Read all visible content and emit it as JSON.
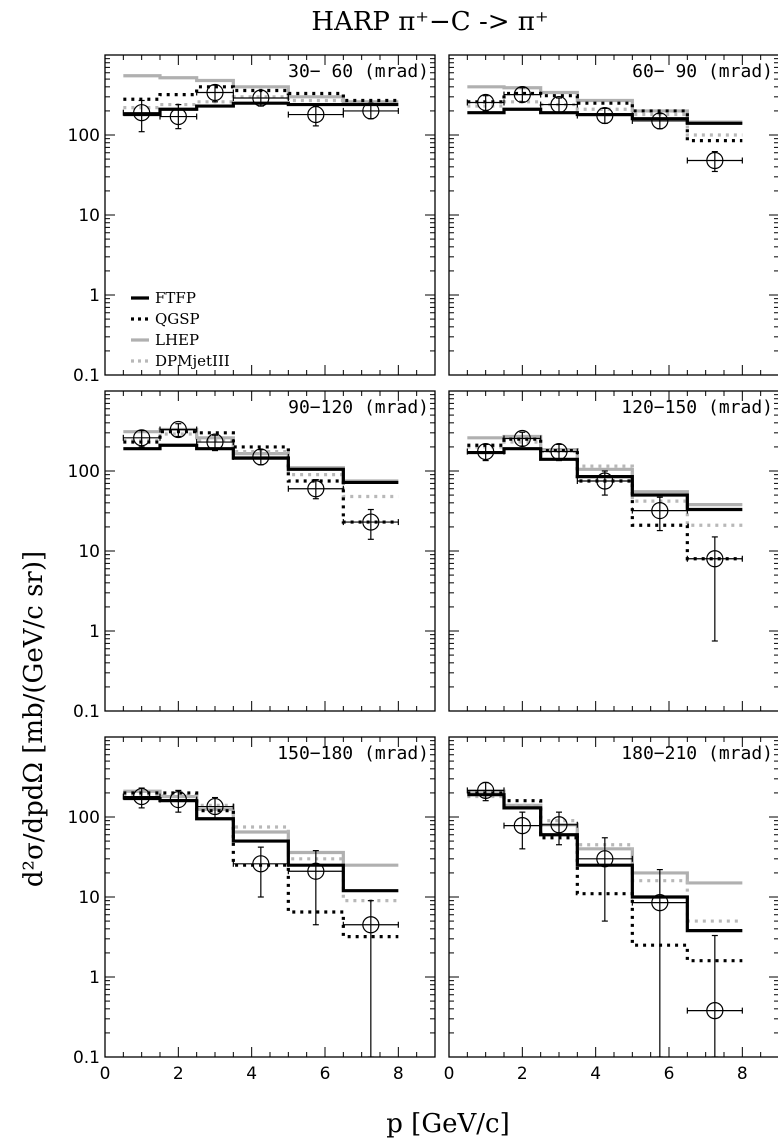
{
  "figure": {
    "title": "HARP π⁺−C -> π⁺",
    "xlabel": "p [GeV/c]",
    "ylabel": "d²σ/dpdΩ [mb/(GeV/c sr)]"
  },
  "chart_data": {
    "type": "step-line with error-bar points",
    "x_range": [
      0,
      9
    ],
    "x_ticks": [
      0,
      2,
      4,
      6,
      8
    ],
    "y_scale": "log",
    "y_range": [
      0.1,
      1000
    ],
    "y_ticks": [
      0.1,
      1,
      10,
      100
    ],
    "y_tick_labels": [
      "0.1",
      "1",
      "10",
      "100"
    ],
    "bin_edges": [
      0.5,
      1.5,
      2.5,
      3.5,
      5.0,
      6.5,
      8.0
    ],
    "legend": {
      "panel": 0,
      "entries": [
        {
          "key": "FTFP",
          "label": "FTFP",
          "color": "#000000",
          "style": "solid-thick"
        },
        {
          "key": "QGSP",
          "label": "QGSP",
          "color": "#000000",
          "style": "dotted"
        },
        {
          "key": "LHEP",
          "label": "LHEP",
          "color": "#b0b0b0",
          "style": "solid"
        },
        {
          "key": "DPMjetIII",
          "label": "DPMjetIII",
          "color": "#b8b8b8",
          "style": "dotted"
        }
      ]
    },
    "panels": [
      {
        "label": "30− 60 (mrad)",
        "models": {
          "FTFP": [
            180,
            210,
            230,
            250,
            240,
            240
          ],
          "QGSP": [
            280,
            320,
            400,
            360,
            330,
            270
          ],
          "LHEP": [
            550,
            520,
            480,
            400,
            300,
            260
          ],
          "DPMjetIII": [
            220,
            240,
            260,
            300,
            270,
            250
          ]
        },
        "points": [
          {
            "x": 1.0,
            "xerr": 0.5,
            "y": 190,
            "ylo": 110,
            "yhi": 270
          },
          {
            "x": 2.0,
            "xerr": 0.5,
            "y": 170,
            "ylo": 120,
            "yhi": 240
          },
          {
            "x": 3.0,
            "xerr": 0.5,
            "y": 340,
            "ylo": 260,
            "yhi": 420
          },
          {
            "x": 4.25,
            "xerr": 0.75,
            "y": 290,
            "ylo": 230,
            "yhi": 360
          },
          {
            "x": 5.75,
            "xerr": 0.75,
            "y": 180,
            "ylo": 130,
            "yhi": 230
          },
          {
            "x": 7.25,
            "xerr": 0.75,
            "y": 200,
            "ylo": 160,
            "yhi": 245
          }
        ]
      },
      {
        "label": "60− 90 (mrad)",
        "models": {
          "FTFP": [
            190,
            210,
            190,
            180,
            160,
            140
          ],
          "QGSP": [
            260,
            330,
            310,
            250,
            200,
            85
          ],
          "LHEP": [
            400,
            390,
            340,
            270,
            200,
            145
          ],
          "DPMjetIII": [
            230,
            260,
            240,
            210,
            180,
            100
          ]
        },
        "points": [
          {
            "x": 1.0,
            "xerr": 0.5,
            "y": 255,
            "ylo": 200,
            "yhi": 310
          },
          {
            "x": 2.0,
            "xerr": 0.5,
            "y": 320,
            "ylo": 260,
            "yhi": 390
          },
          {
            "x": 3.0,
            "xerr": 0.5,
            "y": 240,
            "ylo": 190,
            "yhi": 290
          },
          {
            "x": 4.25,
            "xerr": 0.75,
            "y": 175,
            "ylo": 140,
            "yhi": 215
          },
          {
            "x": 5.75,
            "xerr": 0.75,
            "y": 150,
            "ylo": 120,
            "yhi": 185
          },
          {
            "x": 7.25,
            "xerr": 0.75,
            "y": 48,
            "ylo": 35,
            "yhi": 62
          }
        ]
      },
      {
        "label": "90−120 (mrad)",
        "models": {
          "FTFP": [
            190,
            210,
            190,
            145,
            105,
            72
          ],
          "QGSP": [
            230,
            310,
            300,
            200,
            75,
            23
          ],
          "LHEP": [
            310,
            330,
            260,
            165,
            110,
            75
          ],
          "DPMjetIII": [
            240,
            290,
            240,
            175,
            90,
            48
          ]
        },
        "points": [
          {
            "x": 1.0,
            "xerr": 0.5,
            "y": 260,
            "ylo": 200,
            "yhi": 320
          },
          {
            "x": 2.0,
            "xerr": 0.5,
            "y": 330,
            "ylo": 270,
            "yhi": 390
          },
          {
            "x": 3.0,
            "xerr": 0.5,
            "y": 230,
            "ylo": 180,
            "yhi": 280
          },
          {
            "x": 4.25,
            "xerr": 0.75,
            "y": 150,
            "ylo": 120,
            "yhi": 185
          },
          {
            "x": 5.75,
            "xerr": 0.75,
            "y": 60,
            "ylo": 45,
            "yhi": 78
          },
          {
            "x": 7.25,
            "xerr": 0.75,
            "y": 23,
            "ylo": 14,
            "yhi": 33
          }
        ]
      },
      {
        "label": "120−150 (mrad)",
        "models": {
          "FTFP": [
            170,
            190,
            140,
            85,
            50,
            33
          ],
          "QGSP": [
            210,
            250,
            180,
            75,
            21,
            8
          ],
          "LHEP": [
            260,
            270,
            185,
            105,
            55,
            38
          ],
          "DPMjetIII": [
            200,
            230,
            175,
            115,
            42,
            21
          ]
        },
        "points": [
          {
            "x": 1.0,
            "xerr": 0.5,
            "y": 175,
            "ylo": 135,
            "yhi": 215
          },
          {
            "x": 2.0,
            "xerr": 0.5,
            "y": 255,
            "ylo": 205,
            "yhi": 305
          },
          {
            "x": 3.0,
            "xerr": 0.5,
            "y": 175,
            "ylo": 135,
            "yhi": 215
          },
          {
            "x": 4.25,
            "xerr": 0.75,
            "y": 75,
            "ylo": 50,
            "yhi": 100
          },
          {
            "x": 5.75,
            "xerr": 0.75,
            "y": 32,
            "ylo": 18,
            "yhi": 47
          },
          {
            "x": 7.25,
            "xerr": 0.75,
            "y": 8,
            "ylo": 0.75,
            "yhi": 15
          }
        ]
      },
      {
        "label": "150−180 (mrad)",
        "models": {
          "FTFP": [
            170,
            160,
            95,
            50,
            25,
            12
          ],
          "QGSP": [
            200,
            200,
            120,
            25,
            6.5,
            3.2
          ],
          "LHEP": [
            210,
            180,
            125,
            65,
            36,
            25
          ],
          "DPMjetIII": [
            190,
            185,
            140,
            75,
            30,
            9
          ]
        },
        "points": [
          {
            "x": 1.0,
            "xerr": 0.5,
            "y": 180,
            "ylo": 130,
            "yhi": 230
          },
          {
            "x": 2.0,
            "xerr": 0.5,
            "y": 165,
            "ylo": 115,
            "yhi": 215
          },
          {
            "x": 3.0,
            "xerr": 0.5,
            "y": 135,
            "ylo": 95,
            "yhi": 175
          },
          {
            "x": 4.25,
            "xerr": 0.75,
            "y": 26,
            "ylo": 10,
            "yhi": 42
          },
          {
            "x": 5.75,
            "xerr": 0.75,
            "y": 21,
            "ylo": 4.5,
            "yhi": 38
          },
          {
            "x": 7.25,
            "xerr": 0.75,
            "y": 4.5,
            "ylo": 0.1,
            "yhi": 9
          }
        ]
      },
      {
        "label": "180−210 (mrad)",
        "models": {
          "FTFP": [
            190,
            130,
            60,
            25,
            10,
            3.8
          ],
          "QGSP": [
            200,
            160,
            55,
            11,
            2.5,
            1.6
          ],
          "LHEP": [
            210,
            140,
            80,
            40,
            20,
            15
          ],
          "DPMjetIII": [
            180,
            140,
            90,
            45,
            16,
            5
          ]
        },
        "points": [
          {
            "x": 1.0,
            "xerr": 0.5,
            "y": 215,
            "ylo": 160,
            "yhi": 270
          },
          {
            "x": 2.0,
            "xerr": 0.5,
            "y": 78,
            "ylo": 40,
            "yhi": 115
          },
          {
            "x": 3.0,
            "xerr": 0.5,
            "y": 80,
            "ylo": 45,
            "yhi": 115
          },
          {
            "x": 4.25,
            "xerr": 0.75,
            "y": 30,
            "ylo": 5,
            "yhi": 55
          },
          {
            "x": 5.75,
            "xerr": 0.75,
            "y": 8.5,
            "ylo": 0.1,
            "yhi": 22
          },
          {
            "x": 7.25,
            "xerr": 0.75,
            "y": 0.38,
            "ylo": 0.1,
            "yhi": 3.3
          }
        ]
      }
    ]
  }
}
